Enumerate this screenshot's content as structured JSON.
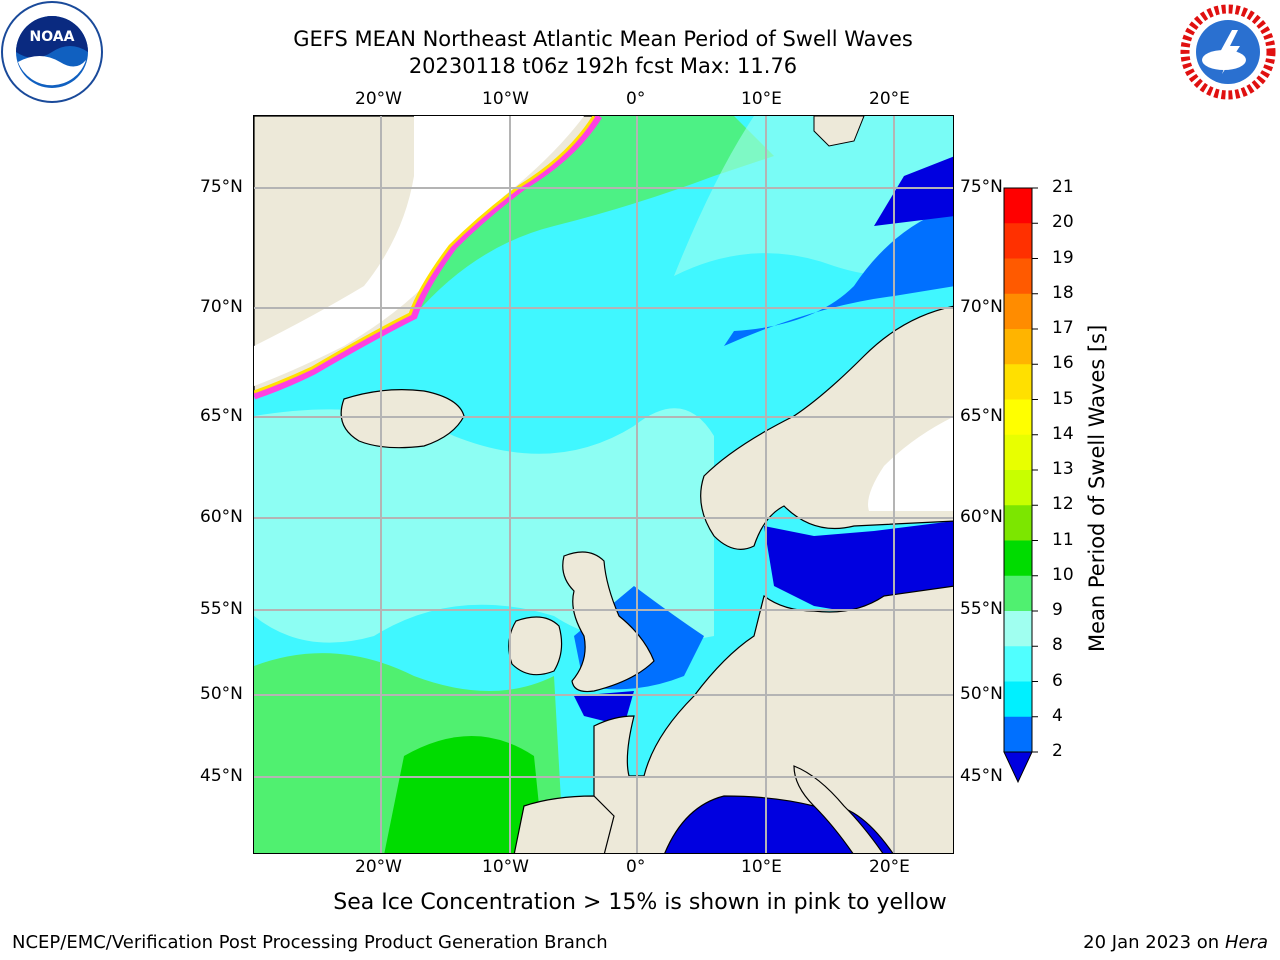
{
  "header": {
    "title_line1": "GEFS MEAN Northeast Atlantic Mean Period of Swell Waves",
    "title_line2": "20230118 t06z 192h fcst   Max: 11.76"
  },
  "logos": {
    "left": "NOAA",
    "left_ring_text": "NATIONAL OCEANIC AND ATMOSPHERIC ADMINISTRATION · U.S. DEPARTMENT OF COMMERCE",
    "right_ring_text": "NATIONAL WEATHER SERVICE"
  },
  "map": {
    "lon_labels": [
      "20°W",
      "10°W",
      "0°",
      "10°E",
      "20°E"
    ],
    "lat_labels": [
      "75°N",
      "70°N",
      "65°N",
      "60°N",
      "55°N",
      "50°N",
      "45°N"
    ],
    "colors": {
      "land": "#ede9d9",
      "grid": "#b4b4b4"
    }
  },
  "colorbar": {
    "label": "Mean Period of Swell Waves [s]",
    "ticks": [
      "21",
      "20",
      "19",
      "18",
      "17",
      "16",
      "15",
      "14",
      "13",
      "12",
      "11",
      "10",
      "9",
      "8",
      "6",
      "4",
      "2"
    ],
    "colors": [
      "#ff0000",
      "#ff3000",
      "#ff5a00",
      "#ff8c00",
      "#ffb400",
      "#ffe000",
      "#ffff00",
      "#e8ff00",
      "#c8ff00",
      "#7ce600",
      "#00dc00",
      "#50f070",
      "#a0fff0",
      "#50ffff",
      "#00f0ff",
      "#0070ff",
      "#0000e0"
    ]
  },
  "note": "Sea Ice Concentration > 15% is shown in pink to yellow",
  "footer": {
    "left": "NCEP/EMC/Verification Post Processing Product Generation Branch",
    "right_date": "20 Jan 2023 on ",
    "right_host": "Hera"
  }
}
